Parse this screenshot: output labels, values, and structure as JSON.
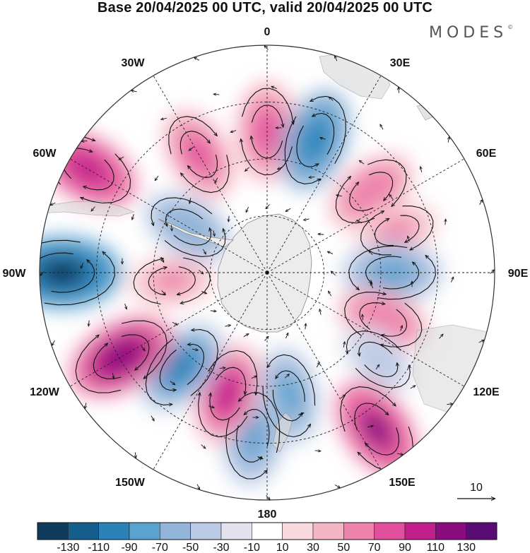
{
  "title": "Base 20/04/2025 00 UTC, valid 20/04/2025 00 UTC",
  "brand": {
    "name": "MODES",
    "mark": "©"
  },
  "longitude_labels": {
    "lon_0": "0",
    "lon_30e": "30E",
    "lon_60e": "60E",
    "lon_90e": "90E",
    "lon_120e": "120E",
    "lon_150e": "150E",
    "lon_180": "180",
    "lon_150w": "150W",
    "lon_120w": "120W",
    "lon_90w": "90W",
    "lon_60w": "60W",
    "lon_30w": "30W"
  },
  "reference_vector": {
    "label": "10"
  },
  "colorbar": {
    "colors": [
      "#0e3b5b",
      "#135e8c",
      "#2a82b9",
      "#5aa2cf",
      "#93b5d9",
      "#bccbe5",
      "#e3e2ef",
      "#ffffff",
      "#f9dbdf",
      "#f4b6c4",
      "#ee84ac",
      "#e24f9d",
      "#c31f8c",
      "#8a0c7f",
      "#590c74"
    ],
    "tick_labels": [
      "-130",
      "-110",
      "-90",
      "-70",
      "-50",
      "-30",
      "-10",
      "10",
      "30",
      "50",
      "70",
      "90",
      "110",
      "130"
    ]
  },
  "anomaly_cells": [
    {
      "lon": 0,
      "r": 0.62,
      "v": 70
    },
    {
      "lon": 20,
      "r": 0.62,
      "v": -80
    },
    {
      "lon": 52,
      "r": 0.58,
      "v": 55
    },
    {
      "lon": 72,
      "r": 0.6,
      "v": 40
    },
    {
      "lon": 90,
      "r": 0.55,
      "v": -70
    },
    {
      "lon": 112,
      "r": 0.55,
      "v": 55
    },
    {
      "lon": 128,
      "r": 0.62,
      "v": -35
    },
    {
      "lon": 145,
      "r": 0.84,
      "v": 90
    },
    {
      "lon": 170,
      "r": 0.55,
      "v": -60
    },
    {
      "lon": 185,
      "r": 0.72,
      "v": -70
    },
    {
      "lon": 198,
      "r": 0.56,
      "v": 75
    },
    {
      "lon": 222,
      "r": 0.56,
      "v": -75
    },
    {
      "lon": 240,
      "r": 0.74,
      "v": 100
    },
    {
      "lon": 270,
      "r": 0.9,
      "v": -115
    },
    {
      "lon": 265,
      "r": 0.42,
      "v": 45
    },
    {
      "lon": 300,
      "r": 0.91,
      "v": 85
    },
    {
      "lon": 300,
      "r": 0.4,
      "v": -55
    },
    {
      "lon": 330,
      "r": 0.6,
      "v": 60
    }
  ]
}
